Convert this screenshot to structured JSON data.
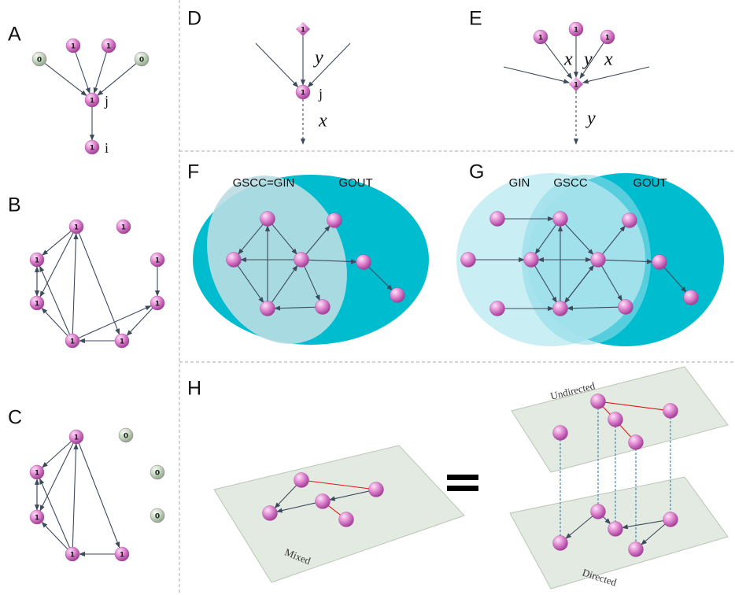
{
  "panels": [
    {
      "label": "A",
      "nodes": [
        "0",
        "1",
        "1",
        "0",
        "1",
        "1"
      ],
      "annotations": [
        "j",
        "i"
      ]
    },
    {
      "label": "B",
      "nodes": [
        "1",
        "1",
        "1",
        "1",
        "1",
        "1",
        "1",
        "1"
      ]
    },
    {
      "label": "C",
      "nodes": [
        "1",
        "0",
        "0",
        "0",
        "1",
        "1",
        "1",
        "1"
      ]
    },
    {
      "label": "D",
      "nodes": [
        "1",
        "1"
      ],
      "annotations": [
        "y",
        "j",
        "x"
      ]
    },
    {
      "label": "E",
      "nodes": [
        "1",
        "1",
        "1",
        "1"
      ],
      "annotations": [
        "x",
        "y",
        "x",
        "y"
      ]
    },
    {
      "label": "F",
      "annotations": [
        "GSCC=GIN",
        "GOUT"
      ]
    },
    {
      "label": "G",
      "annotations": [
        "GIN",
        "GSCC",
        "GOUT"
      ]
    },
    {
      "label": "H",
      "annotations": [
        "Undirected",
        "Mixed",
        "Directed"
      ]
    }
  ]
}
